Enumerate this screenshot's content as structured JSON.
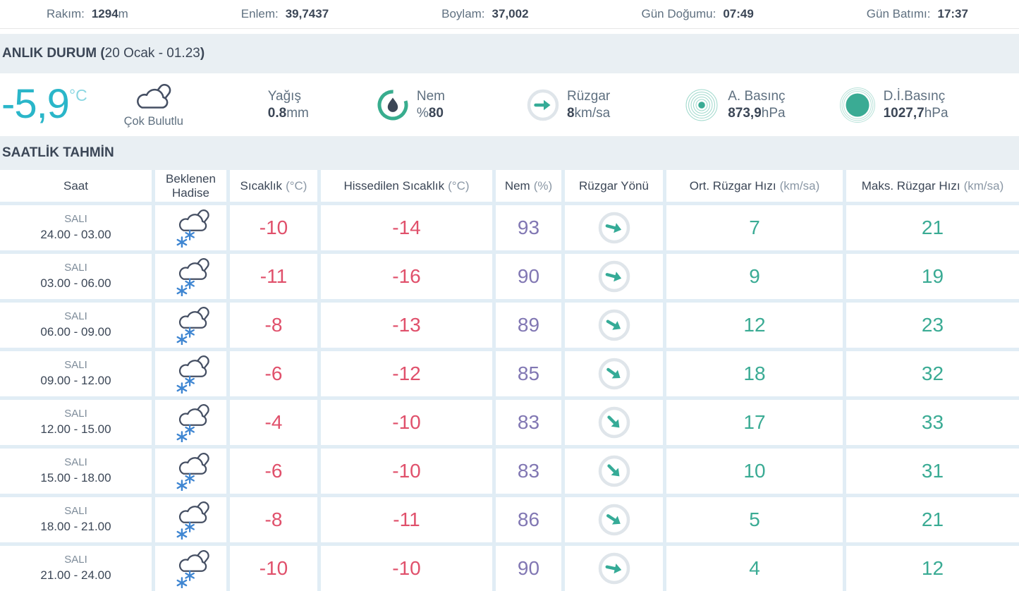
{
  "topbar": {
    "altitude_label": "Rakım:",
    "altitude_value": "1294",
    "altitude_unit": "m",
    "latitude_label": "Enlem:",
    "latitude_value": "39,7437",
    "longitude_label": "Boylam:",
    "longitude_value": "37,002",
    "sunrise_label": "Gün Doğumu:",
    "sunrise_value": "07:49",
    "sunset_label": "Gün Batımı:",
    "sunset_value": "17:37"
  },
  "current": {
    "section_title": "ANLIK DURUM (",
    "section_date": "20 Ocak - 01.23",
    "section_close": ")",
    "temperature": "-5,9",
    "temperature_unit": "°C",
    "condition": "Çok Bulutlu",
    "condition_icon": "cloudy-icon",
    "precip_label": "Yağış",
    "precip_value": "0.8",
    "precip_unit": "mm",
    "humidity_label": "Nem",
    "humidity_prefix": "%",
    "humidity_value": "80",
    "wind_label": "Rüzgar",
    "wind_value": "8",
    "wind_unit": "km/sa",
    "pressure_label": "A. Basınç",
    "pressure_value": "873,9",
    "pressure_unit": "hPa",
    "sea_pressure_label": "D.İ.Basınç",
    "sea_pressure_value": "1027,7",
    "sea_pressure_unit": "hPa"
  },
  "hourly": {
    "section_title": "SAATLİK TAHMİN",
    "columns": [
      {
        "label": "Saat",
        "unit": ""
      },
      {
        "label": "Beklenen Hadise",
        "unit": ""
      },
      {
        "label": "Sıcaklık",
        "unit": "(°C)"
      },
      {
        "label": "Hissedilen Sıcaklık",
        "unit": "(°C)"
      },
      {
        "label": "Nem",
        "unit": "(%)"
      },
      {
        "label": "Rüzgar Yönü",
        "unit": ""
      },
      {
        "label": "Ort. Rüzgar Hızı",
        "unit": "(km/sa)"
      },
      {
        "label": "Maks. Rüzgar Hızı",
        "unit": "(km/sa)"
      }
    ],
    "rows": [
      {
        "day": "SALI",
        "time": "24.00 - 03.00",
        "event_icon": "snow-cloud",
        "temp": "-10",
        "feels": "-14",
        "humidity": "93",
        "wind_dir_deg": 15,
        "avg_wind": "7",
        "max_wind": "21"
      },
      {
        "day": "SALI",
        "time": "03.00 - 06.00",
        "event_icon": "snow-cloud",
        "temp": "-11",
        "feels": "-16",
        "humidity": "90",
        "wind_dir_deg": 15,
        "avg_wind": "9",
        "max_wind": "19"
      },
      {
        "day": "SALI",
        "time": "06.00 - 09.00",
        "event_icon": "snow-cloud",
        "temp": "-8",
        "feels": "-13",
        "humidity": "89",
        "wind_dir_deg": 30,
        "avg_wind": "12",
        "max_wind": "23"
      },
      {
        "day": "SALI",
        "time": "09.00 - 12.00",
        "event_icon": "snow-cloud",
        "temp": "-6",
        "feels": "-12",
        "humidity": "85",
        "wind_dir_deg": 35,
        "avg_wind": "18",
        "max_wind": "32"
      },
      {
        "day": "SALI",
        "time": "12.00 - 15.00",
        "event_icon": "snow-cloud",
        "temp": "-4",
        "feels": "-10",
        "humidity": "83",
        "wind_dir_deg": 45,
        "avg_wind": "17",
        "max_wind": "33"
      },
      {
        "day": "SALI",
        "time": "15.00 - 18.00",
        "event_icon": "snow-cloud",
        "temp": "-6",
        "feels": "-10",
        "humidity": "83",
        "wind_dir_deg": 45,
        "avg_wind": "10",
        "max_wind": "31"
      },
      {
        "day": "SALI",
        "time": "18.00 - 21.00",
        "event_icon": "snow-cloud",
        "temp": "-8",
        "feels": "-11",
        "humidity": "86",
        "wind_dir_deg": 33,
        "avg_wind": "5",
        "max_wind": "21"
      },
      {
        "day": "SALI",
        "time": "21.00 - 24.00",
        "event_icon": "snow-cloud",
        "temp": "-10",
        "feels": "-10",
        "humidity": "90",
        "wind_dir_deg": 12,
        "avg_wind": "4",
        "max_wind": "12"
      }
    ]
  },
  "colors": {
    "accent_cyan": "#2ab6c9",
    "temp_red": "#e0506b",
    "humidity_purple": "#8177b3",
    "wind_teal": "#3aab94",
    "navy_text": "#3b4656",
    "band_bg": "#e9eff3",
    "separator": "#e1edf5",
    "snowflake_blue": "#3f86d2"
  }
}
